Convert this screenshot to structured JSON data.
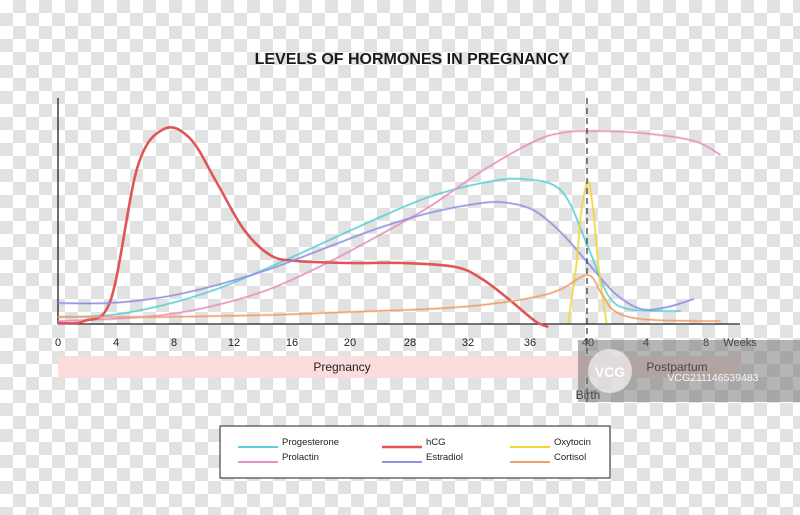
{
  "chart_data": {
    "type": "line",
    "title": "LEVELS OF HORMONES IN PREGNANCY",
    "x_ticks": [
      "0",
      "4",
      "8",
      "12",
      "16",
      "20",
      "28",
      "32",
      "36",
      "40",
      "4",
      "8"
    ],
    "x_unit": "Weeks",
    "phases": {
      "pregnancy": "Pregnancy",
      "postpartum": "Postpartum"
    },
    "event": {
      "label": "Birth",
      "at_tick": "40"
    },
    "ylim": [
      0,
      100
    ],
    "legend_position": "bottom",
    "series": [
      {
        "name": "Progesterone",
        "color": "#5ccfd6",
        "values": [
          [
            0,
            3
          ],
          [
            4,
            4
          ],
          [
            8,
            9
          ],
          [
            12,
            17
          ],
          [
            16,
            28
          ],
          [
            20,
            40
          ],
          [
            24,
            52
          ],
          [
            28,
            63
          ],
          [
            32,
            70
          ],
          [
            35,
            72
          ],
          [
            38,
            66
          ],
          [
            40,
            38
          ],
          [
            41.5,
            14
          ],
          [
            43,
            7
          ],
          [
            46,
            6
          ],
          [
            47,
            6
          ]
        ]
      },
      {
        "name": "Prolactin",
        "color": "#ea8fc1",
        "values": [
          [
            0,
            1
          ],
          [
            4,
            2
          ],
          [
            8,
            4
          ],
          [
            12,
            9
          ],
          [
            16,
            17
          ],
          [
            20,
            29
          ],
          [
            24,
            43
          ],
          [
            28,
            58
          ],
          [
            32,
            76
          ],
          [
            36,
            91
          ],
          [
            38,
            95
          ],
          [
            40,
            96
          ],
          [
            44,
            95
          ],
          [
            48,
            91
          ],
          [
            50,
            84
          ]
        ]
      },
      {
        "name": "hCG",
        "color": "#e05555",
        "values": [
          [
            0,
            0
          ],
          [
            2,
            1
          ],
          [
            4,
            12
          ],
          [
            6,
            78
          ],
          [
            8,
            97
          ],
          [
            10,
            92
          ],
          [
            12,
            70
          ],
          [
            14,
            47
          ],
          [
            16,
            34
          ],
          [
            18,
            31
          ],
          [
            22,
            30
          ],
          [
            26,
            30
          ],
          [
            30,
            28
          ],
          [
            32,
            22
          ],
          [
            34,
            12
          ],
          [
            36,
            1
          ],
          [
            37,
            -2
          ]
        ]
      },
      {
        "name": "Estradiol",
        "color": "#8c92e3",
        "values": [
          [
            0,
            10
          ],
          [
            4,
            10
          ],
          [
            8,
            13
          ],
          [
            12,
            19
          ],
          [
            16,
            27
          ],
          [
            20,
            37
          ],
          [
            24,
            47
          ],
          [
            28,
            55
          ],
          [
            32,
            60
          ],
          [
            34,
            60
          ],
          [
            36,
            56
          ],
          [
            38,
            45
          ],
          [
            40,
            30
          ],
          [
            42,
            15
          ],
          [
            44,
            7
          ],
          [
            46,
            8
          ],
          [
            48,
            12
          ]
        ]
      },
      {
        "name": "Oxytocin",
        "color": "#f1d63a",
        "values": [
          [
            38.5,
            0
          ],
          [
            39.1,
            28
          ],
          [
            39.5,
            56
          ],
          [
            40,
            71
          ],
          [
            40.4,
            56
          ],
          [
            40.8,
            28
          ],
          [
            41.4,
            0
          ]
        ]
      },
      {
        "name": "Cortisol",
        "color": "#eea06a",
        "values": [
          [
            0,
            3
          ],
          [
            4,
            3
          ],
          [
            8,
            3
          ],
          [
            12,
            3.5
          ],
          [
            16,
            4
          ],
          [
            20,
            5
          ],
          [
            24,
            6
          ],
          [
            28,
            7
          ],
          [
            32,
            9
          ],
          [
            36,
            13
          ],
          [
            38,
            17
          ],
          [
            40,
            24
          ],
          [
            41,
            15
          ],
          [
            42,
            6
          ],
          [
            44,
            2
          ],
          [
            48,
            1
          ],
          [
            50,
            1
          ]
        ]
      }
    ]
  },
  "watermark": {
    "logo": "VCG",
    "id": "VCG211146539483"
  }
}
